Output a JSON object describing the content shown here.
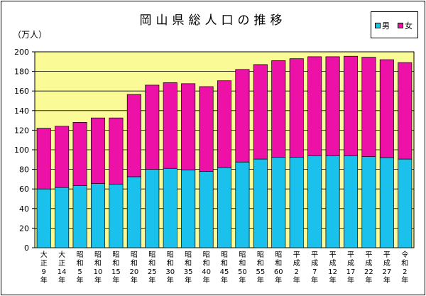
{
  "chart_data": {
    "type": "bar",
    "stacked": true,
    "title": "岡山県総人口の推移",
    "unit_label": "（万人）",
    "ylim": [
      0,
      200
    ],
    "ytick_step": 20,
    "grid": true,
    "legend_position": "top-right",
    "categories": [
      [
        "大",
        "正",
        "9",
        "年"
      ],
      [
        "大",
        "正",
        "14",
        "年"
      ],
      [
        "昭",
        "和",
        "5",
        "年"
      ],
      [
        "昭",
        "和",
        "10",
        "年"
      ],
      [
        "昭",
        "和",
        "15",
        "年"
      ],
      [
        "昭",
        "和",
        "20",
        "年"
      ],
      [
        "昭",
        "和",
        "25",
        "年"
      ],
      [
        "昭",
        "和",
        "30",
        "年"
      ],
      [
        "昭",
        "和",
        "35",
        "年"
      ],
      [
        "昭",
        "和",
        "40",
        "年"
      ],
      [
        "昭",
        "和",
        "45",
        "年"
      ],
      [
        "昭",
        "和",
        "50",
        "年"
      ],
      [
        "昭",
        "和",
        "55",
        "年"
      ],
      [
        "昭",
        "和",
        "60",
        "年"
      ],
      [
        "平",
        "成",
        "2",
        "年"
      ],
      [
        "平",
        "成",
        "7",
        "年"
      ],
      [
        "平",
        "成",
        "12",
        "年"
      ],
      [
        "平",
        "成",
        "17",
        "年"
      ],
      [
        "平",
        "成",
        "22",
        "年"
      ],
      [
        "平",
        "成",
        "27",
        "年"
      ],
      [
        "令",
        "和",
        "2",
        "年"
      ]
    ],
    "series": [
      {
        "name": "男",
        "color": "#19c1ec",
        "values": [
          60,
          61.5,
          63.5,
          65.5,
          65,
          72.5,
          80,
          81,
          79.5,
          78,
          82,
          87.5,
          90.5,
          92.5,
          92.5,
          94,
          94,
          94,
          93,
          92,
          90.5
        ]
      },
      {
        "name": "女",
        "color": "#ee11a8",
        "values": [
          62,
          62.5,
          64.5,
          67,
          67.5,
          84,
          86,
          87.5,
          88,
          86.5,
          88.5,
          94.5,
          96.5,
          98.5,
          100.5,
          101,
          101,
          101.5,
          101.5,
          100,
          98.5
        ]
      }
    ]
  },
  "colors": {
    "plot_bg": "#fafa96",
    "axis": "#000000"
  }
}
